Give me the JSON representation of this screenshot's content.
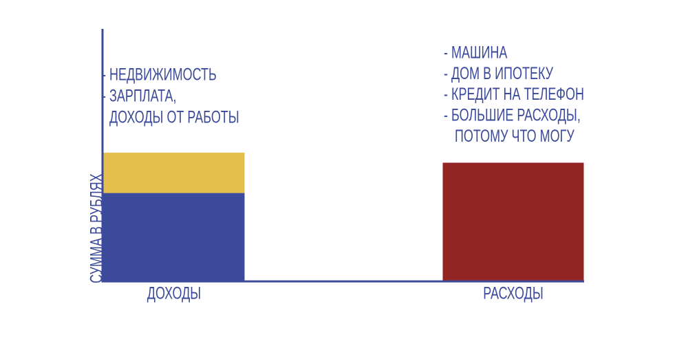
{
  "chart_data": {
    "type": "stacked-bar",
    "y_label": "СУММА В РУБЛЯХ",
    "categories": [
      "ДОХОДЫ",
      "РАСХОДЫ"
    ],
    "series": [
      {
        "color": "#3b4a9a",
        "values": [
          35,
          null
        ]
      },
      {
        "color": "#e5c04e",
        "values": [
          16,
          null
        ]
      },
      {
        "color": "#922424",
        "values": [
          null,
          47
        ]
      }
    ],
    "ylim": [
      0,
      100
    ],
    "annotations": [
      {
        "lines": [
          "- НЕДВИЖИМОСТЬ",
          "- ЗАРПЛАТА,",
          "ДОХОДЫ ОТ РАБОТЫ"
        ]
      },
      {
        "lines": [
          "- МАШИНА",
          "- ДОМ В ИПОТЕКУ",
          "- КРЕДИТ НА ТЕЛЕФОН",
          "- БОЛЬШИЕ РАСХОДЫ,",
          "ПОТОМУ ЧТО МОГУ"
        ]
      }
    ]
  }
}
